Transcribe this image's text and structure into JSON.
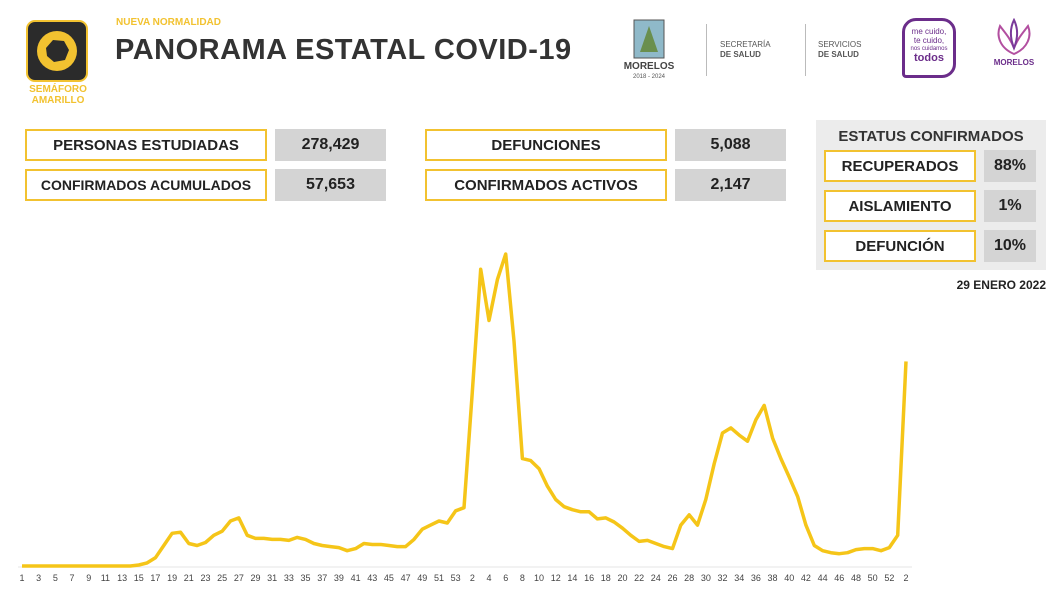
{
  "header": {
    "traffic_light_label_1": "SEMÁFORO",
    "traffic_light_label_2": "AMARILLO",
    "kicker": "NUEVA NORMALIDAD",
    "title": "PANORAMA ESTATAL COVID-19",
    "logos": {
      "morelos": "MORELOS",
      "morelos_years": "2018 - 2024",
      "secretaria_1": "SECRETARÍA",
      "secretaria_2": "DE SALUD",
      "servicios_1": "SERVICIOS",
      "servicios_2": "DE SALUD",
      "campaign_1": "me cuido,",
      "campaign_2": "te cuido,",
      "campaign_3": "nos cuidamos",
      "campaign_4": "todos",
      "morelos_2": "MORELOS"
    }
  },
  "stats": [
    {
      "label": "PERSONAS ESTUDIADAS",
      "value": "278,429"
    },
    {
      "label": "CONFIRMADOS ACUMULADOS",
      "value": "57,653"
    },
    {
      "label": "DEFUNCIONES",
      "value": "5,088"
    },
    {
      "label": "CONFIRMADOS ACTIVOS",
      "value": "2,147"
    }
  ],
  "status": {
    "title": "ESTATUS CONFIRMADOS",
    "rows": [
      {
        "label": "RECUPERADOS",
        "value": "88%"
      },
      {
        "label": "AISLAMIENTO",
        "value": "1%"
      },
      {
        "label": "DEFUNCIÓN",
        "value": "10%"
      }
    ]
  },
  "date": "29 ENERO 2022",
  "chart_data": {
    "type": "line",
    "color": "#f5c518",
    "categories": [
      "1",
      null,
      "3",
      null,
      "5",
      null,
      "7",
      null,
      "9",
      null,
      "11",
      null,
      "13",
      null,
      "15",
      null,
      "17",
      null,
      "19",
      null,
      "21",
      null,
      "23",
      null,
      "25",
      null,
      "27",
      null,
      "29",
      null,
      "31",
      null,
      "33",
      null,
      "35",
      null,
      "37",
      null,
      "39",
      null,
      "41",
      null,
      "43",
      null,
      "45",
      null,
      "47",
      null,
      "49",
      null,
      "51",
      null,
      "53",
      null,
      "2",
      null,
      "4",
      null,
      "6",
      null,
      "8",
      null,
      "10",
      null,
      "12",
      null,
      "14",
      null,
      "16",
      null,
      "18",
      null,
      "20",
      null,
      "22",
      null,
      "24",
      null,
      "26",
      null,
      "28",
      null,
      "30",
      null,
      "32",
      null,
      "34",
      null,
      "36",
      null,
      "38",
      null,
      "40",
      null,
      "42",
      null,
      "44",
      null,
      "46",
      null,
      "48",
      null,
      "50",
      null,
      "52",
      null,
      "2"
    ],
    "values": [
      0,
      0,
      0,
      0,
      0,
      0,
      0,
      0,
      0,
      0,
      0,
      0,
      0,
      0,
      1,
      3,
      8,
      20,
      32,
      33,
      22,
      20,
      23,
      30,
      34,
      44,
      47,
      30,
      27,
      27,
      26,
      26,
      25,
      28,
      26,
      22,
      20,
      19,
      18,
      15,
      17,
      22,
      21,
      21,
      20,
      19,
      19,
      26,
      36,
      40,
      44,
      42,
      54,
      57,
      170,
      290,
      240,
      280,
      305,
      220,
      105,
      103,
      95,
      78,
      65,
      58,
      55,
      53,
      53,
      46,
      47,
      43,
      37,
      30,
      24,
      25,
      22,
      19,
      17,
      40,
      50,
      40,
      65,
      100,
      130,
      135,
      128,
      122,
      143,
      157,
      125,
      105,
      87,
      68,
      40,
      20,
      15,
      13,
      12,
      13,
      16,
      17,
      17,
      15,
      18,
      30,
      200
    ]
  }
}
